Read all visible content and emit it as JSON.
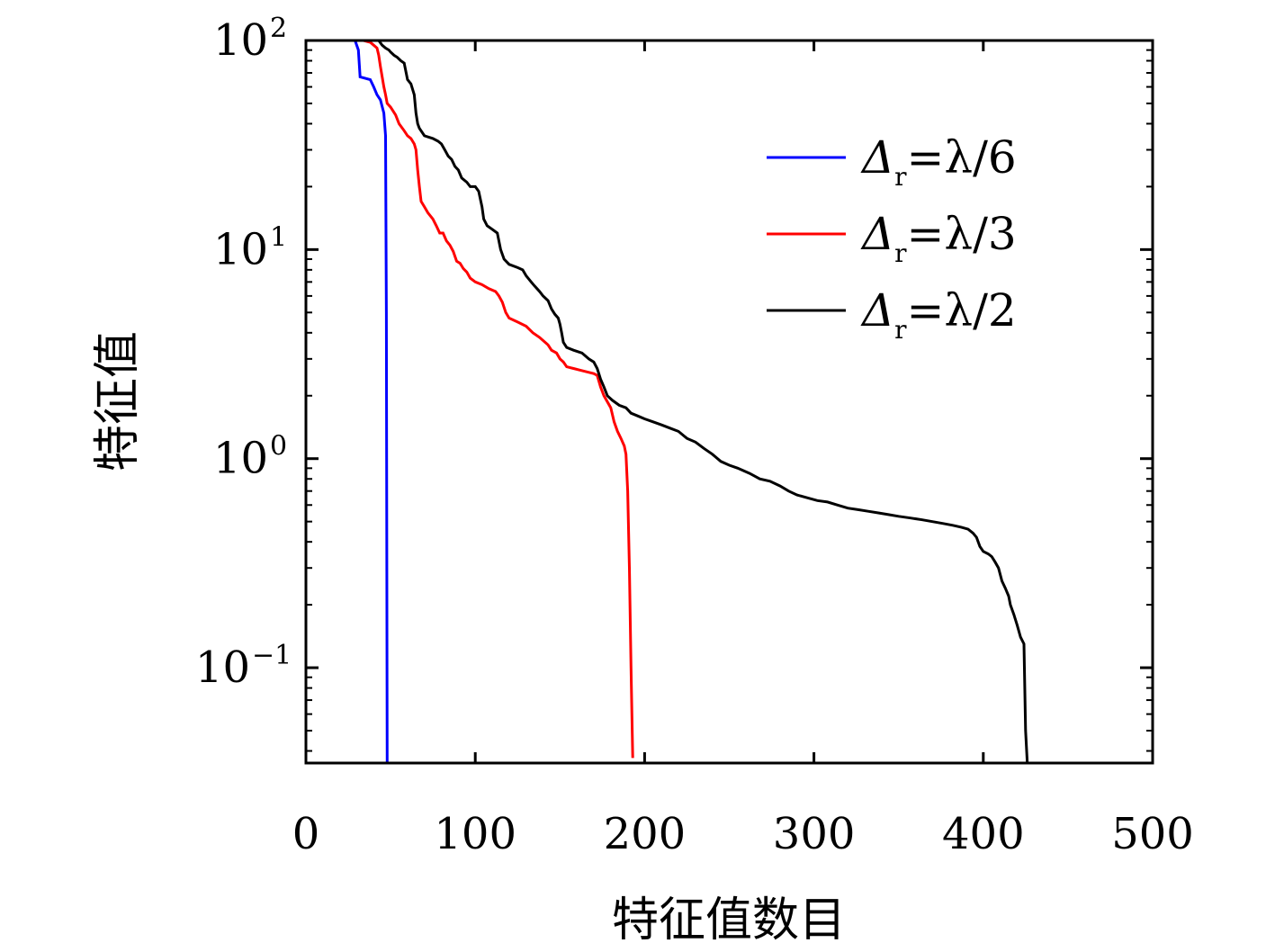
{
  "chart_data": {
    "type": "line",
    "title": "",
    "xlabel": "特征值数目",
    "ylabel": "特征值",
    "xlim": [
      0,
      500
    ],
    "ylim": [
      0.035,
      100
    ],
    "yscale": "log",
    "grid": false,
    "legend_position": "top-right",
    "x_ticks": [
      {
        "value": 0,
        "label": "0"
      },
      {
        "value": 100,
        "label": "100"
      },
      {
        "value": 200,
        "label": "200"
      },
      {
        "value": 300,
        "label": "300"
      },
      {
        "value": 400,
        "label": "400"
      },
      {
        "value": 500,
        "label": "500"
      }
    ],
    "y_ticks": [
      {
        "value": 0.1,
        "base": "10",
        "exp": "−1"
      },
      {
        "value": 1,
        "base": "10",
        "exp": "0"
      },
      {
        "value": 10,
        "base": "10",
        "exp": "1"
      },
      {
        "value": 100,
        "base": "10",
        "exp": "2"
      }
    ],
    "series": [
      {
        "name": "Δr=λ/6",
        "legend_main": "Δ",
        "legend_sub": "r",
        "legend_rest": "=λ/6",
        "color": "#0000ff",
        "points": [
          [
            29,
            100
          ],
          [
            31,
            90
          ],
          [
            32,
            67
          ],
          [
            38,
            65
          ],
          [
            40,
            60
          ],
          [
            42,
            55
          ],
          [
            44,
            52
          ],
          [
            46,
            45
          ],
          [
            47,
            35
          ],
          [
            47.5,
            5
          ],
          [
            48,
            0.035
          ]
        ]
      },
      {
        "name": "Δr=λ/3",
        "legend_main": "Δ",
        "legend_sub": "r",
        "legend_rest": "=λ/3",
        "color": "#ff0000",
        "points": [
          [
            34,
            100
          ],
          [
            38,
            98
          ],
          [
            40,
            95
          ],
          [
            42,
            92
          ],
          [
            43,
            85
          ],
          [
            44,
            75
          ],
          [
            46,
            60
          ],
          [
            47,
            55
          ],
          [
            48,
            50
          ],
          [
            50,
            48
          ],
          [
            53,
            44
          ],
          [
            55,
            40
          ],
          [
            58,
            37
          ],
          [
            60,
            35
          ],
          [
            62,
            34
          ],
          [
            64,
            32
          ],
          [
            65,
            30
          ],
          [
            66,
            24
          ],
          [
            67,
            20
          ],
          [
            68,
            17
          ],
          [
            70,
            16
          ],
          [
            72,
            15
          ],
          [
            75,
            14
          ],
          [
            77,
            13
          ],
          [
            79,
            12
          ],
          [
            81,
            12
          ],
          [
            83,
            11
          ],
          [
            85,
            10.5
          ],
          [
            87,
            9.8
          ],
          [
            89,
            8.8
          ],
          [
            91,
            8.6
          ],
          [
            93,
            8.1
          ],
          [
            95,
            7.8
          ],
          [
            97,
            7.3
          ],
          [
            100,
            7.0
          ],
          [
            104,
            6.8
          ],
          [
            108,
            6.5
          ],
          [
            112,
            6.3
          ],
          [
            114,
            6.0
          ],
          [
            116,
            5.6
          ],
          [
            118,
            5.0
          ],
          [
            120,
            4.7
          ],
          [
            125,
            4.5
          ],
          [
            130,
            4.3
          ],
          [
            134,
            4.0
          ],
          [
            138,
            3.8
          ],
          [
            143,
            3.5
          ],
          [
            145,
            3.3
          ],
          [
            148,
            3.2
          ],
          [
            150,
            3.0
          ],
          [
            152,
            2.9
          ],
          [
            154,
            2.75
          ],
          [
            158,
            2.7
          ],
          [
            162,
            2.65
          ],
          [
            166,
            2.6
          ],
          [
            170,
            2.55
          ],
          [
            172,
            2.5
          ],
          [
            174,
            2.2
          ],
          [
            176,
            2.0
          ],
          [
            180,
            1.75
          ],
          [
            182,
            1.5
          ],
          [
            184,
            1.35
          ],
          [
            186,
            1.25
          ],
          [
            188,
            1.15
          ],
          [
            189,
            1.05
          ],
          [
            190,
            0.7
          ],
          [
            191,
            0.3
          ],
          [
            192,
            0.1
          ],
          [
            193,
            0.037
          ]
        ]
      },
      {
        "name": "Δr=λ/2",
        "legend_main": "Δ",
        "legend_sub": "r",
        "legend_rest": "=λ/2",
        "color": "#000000",
        "points": [
          [
            36,
            100
          ],
          [
            43,
            100
          ],
          [
            45,
            95
          ],
          [
            47,
            92
          ],
          [
            49,
            90
          ],
          [
            50,
            88
          ],
          [
            52,
            85
          ],
          [
            54,
            83
          ],
          [
            56,
            80
          ],
          [
            58,
            78
          ],
          [
            60,
            65
          ],
          [
            62,
            62
          ],
          [
            64,
            55
          ],
          [
            65,
            45
          ],
          [
            66,
            40
          ],
          [
            67,
            38
          ],
          [
            70,
            35
          ],
          [
            75,
            34
          ],
          [
            78,
            33
          ],
          [
            80,
            32
          ],
          [
            82,
            30
          ],
          [
            84,
            28
          ],
          [
            86,
            27
          ],
          [
            88,
            25
          ],
          [
            90,
            24
          ],
          [
            92,
            22
          ],
          [
            95,
            21
          ],
          [
            97,
            20
          ],
          [
            100,
            20
          ],
          [
            102,
            19
          ],
          [
            104,
            16
          ],
          [
            105,
            14
          ],
          [
            107,
            13
          ],
          [
            110,
            12.5
          ],
          [
            113,
            12
          ],
          [
            115,
            10
          ],
          [
            117,
            9
          ],
          [
            120,
            8.5
          ],
          [
            125,
            8.2
          ],
          [
            128,
            8.0
          ],
          [
            130,
            7.5
          ],
          [
            133,
            7.0
          ],
          [
            135,
            6.7
          ],
          [
            138,
            6.3
          ],
          [
            140,
            6.0
          ],
          [
            143,
            5.7
          ],
          [
            145,
            5.2
          ],
          [
            147,
            4.9
          ],
          [
            149,
            4.7
          ],
          [
            150,
            4.4
          ],
          [
            151,
            4.0
          ],
          [
            152,
            3.6
          ],
          [
            154,
            3.4
          ],
          [
            158,
            3.3
          ],
          [
            163,
            3.2
          ],
          [
            167,
            3.0
          ],
          [
            170,
            2.9
          ],
          [
            172,
            2.7
          ],
          [
            174,
            2.4
          ],
          [
            176,
            2.2
          ],
          [
            178,
            2.0
          ],
          [
            181,
            1.9
          ],
          [
            185,
            1.8
          ],
          [
            189,
            1.75
          ],
          [
            192,
            1.65
          ],
          [
            196,
            1.6
          ],
          [
            200,
            1.55
          ],
          [
            205,
            1.5
          ],
          [
            210,
            1.45
          ],
          [
            215,
            1.4
          ],
          [
            220,
            1.35
          ],
          [
            225,
            1.25
          ],
          [
            230,
            1.2
          ],
          [
            235,
            1.12
          ],
          [
            240,
            1.05
          ],
          [
            245,
            0.97
          ],
          [
            250,
            0.93
          ],
          [
            255,
            0.9
          ],
          [
            262,
            0.85
          ],
          [
            268,
            0.8
          ],
          [
            274,
            0.78
          ],
          [
            280,
            0.74
          ],
          [
            285,
            0.7
          ],
          [
            290,
            0.67
          ],
          [
            296,
            0.65
          ],
          [
            302,
            0.63
          ],
          [
            308,
            0.62
          ],
          [
            314,
            0.6
          ],
          [
            320,
            0.58
          ],
          [
            326,
            0.57
          ],
          [
            332,
            0.56
          ],
          [
            338,
            0.55
          ],
          [
            344,
            0.54
          ],
          [
            350,
            0.53
          ],
          [
            357,
            0.52
          ],
          [
            364,
            0.51
          ],
          [
            370,
            0.5
          ],
          [
            376,
            0.49
          ],
          [
            382,
            0.48
          ],
          [
            387,
            0.47
          ],
          [
            391,
            0.46
          ],
          [
            394,
            0.44
          ],
          [
            396,
            0.42
          ],
          [
            398,
            0.38
          ],
          [
            400,
            0.36
          ],
          [
            403,
            0.35
          ],
          [
            405,
            0.34
          ],
          [
            407,
            0.32
          ],
          [
            409,
            0.3
          ],
          [
            411,
            0.26
          ],
          [
            413,
            0.24
          ],
          [
            415,
            0.22
          ],
          [
            416,
            0.2
          ],
          [
            418,
            0.18
          ],
          [
            420,
            0.16
          ],
          [
            422,
            0.14
          ],
          [
            424,
            0.13
          ],
          [
            425,
            0.05
          ],
          [
            426,
            0.035
          ]
        ]
      }
    ]
  }
}
